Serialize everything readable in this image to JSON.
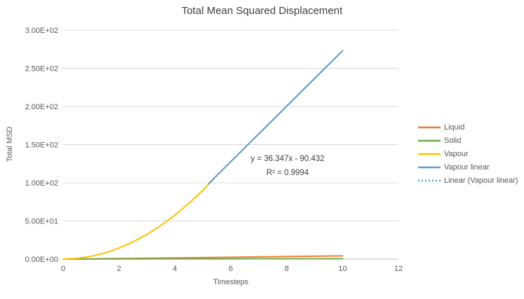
{
  "chart_data": {
    "type": "line",
    "title": "Total Mean Squared Displacement",
    "xlabel": "Timesteps",
    "ylabel": "Total MSD",
    "xlim": [
      0,
      12
    ],
    "ylim": [
      0,
      300
    ],
    "x_ticks": [
      0,
      2,
      4,
      6,
      8,
      10,
      12
    ],
    "y_ticks": [
      {
        "value": 0,
        "label": "0.00E+00"
      },
      {
        "value": 50,
        "label": "5.00E+01"
      },
      {
        "value": 100,
        "label": "1.00E+02"
      },
      {
        "value": 150,
        "label": "1.50E+02"
      },
      {
        "value": 200,
        "label": "2.00E+02"
      },
      {
        "value": 250,
        "label": "2.50E+02"
      },
      {
        "value": 300,
        "label": "3.00E+02"
      }
    ],
    "grid": "horizontal-only",
    "legend_position": "right",
    "colors": {
      "gridline": "#D9D9D9",
      "axis_line": "#BFBFBF",
      "text": "#595959"
    },
    "annotation": {
      "equation": "y = 36.347x - 90.432",
      "r_squared": "R² = 0.9994"
    },
    "series": [
      {
        "name": "Liquid",
        "color": "#ED7D31",
        "dash": "",
        "width": 2,
        "points": [
          [
            0,
            0
          ],
          [
            1,
            0.3
          ],
          [
            2,
            0.8
          ],
          [
            3,
            1.2
          ],
          [
            4,
            1.6
          ],
          [
            5,
            2.0
          ],
          [
            6,
            2.4
          ],
          [
            7,
            2.9
          ],
          [
            8,
            3.3
          ],
          [
            9,
            3.8
          ],
          [
            10,
            4.3
          ]
        ]
      },
      {
        "name": "Solid",
        "color": "#70AD47",
        "dash": "",
        "width": 2,
        "points": [
          [
            0,
            0
          ],
          [
            1,
            0.1
          ],
          [
            2,
            0.2
          ],
          [
            3,
            0.3
          ],
          [
            4,
            0.3
          ],
          [
            5,
            0.4
          ],
          [
            6,
            0.4
          ],
          [
            7,
            0.5
          ],
          [
            8,
            0.5
          ],
          [
            9,
            0.5
          ],
          [
            10,
            0.6
          ]
        ]
      },
      {
        "name": "Vapour",
        "color": "#FFC000",
        "dash": "",
        "width": 2,
        "points": [
          [
            0,
            0
          ],
          [
            0.5,
            0.9
          ],
          [
            1,
            3.6
          ],
          [
            1.5,
            8.1
          ],
          [
            2,
            14.4
          ],
          [
            2.5,
            22.5
          ],
          [
            3,
            32.4
          ],
          [
            3.5,
            44.1
          ],
          [
            4,
            57.6
          ],
          [
            4.5,
            72.9
          ],
          [
            5,
            90.0
          ],
          [
            5.5,
            109.5
          ],
          [
            6,
            127.7
          ],
          [
            6.5,
            145.8
          ],
          [
            7,
            164.0
          ],
          [
            7.5,
            182.2
          ],
          [
            8,
            200.3
          ],
          [
            8.5,
            218.5
          ],
          [
            9,
            236.7
          ],
          [
            9.5,
            254.9
          ],
          [
            10,
            273.0
          ]
        ]
      },
      {
        "name": "Vapour linear",
        "color": "#5B9BD5",
        "dash": "",
        "width": 2,
        "points": [
          [
            5.2,
            98.6
          ],
          [
            6,
            127.7
          ],
          [
            7,
            164.0
          ],
          [
            8,
            200.3
          ],
          [
            9,
            236.7
          ],
          [
            10,
            273.0
          ]
        ]
      },
      {
        "name": "Linear (Vapour linear)",
        "color": "#5B9BD5",
        "dash": "2 3",
        "width": 1.5,
        "points": [
          [
            5.2,
            98.6
          ],
          [
            10,
            273.0
          ]
        ]
      }
    ]
  }
}
